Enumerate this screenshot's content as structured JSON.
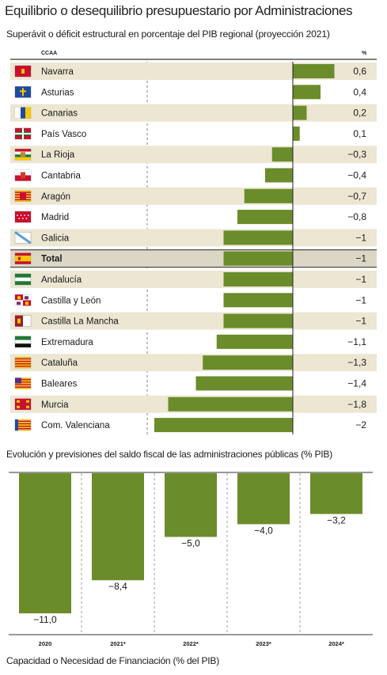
{
  "title": "Equilibrio o desequilibrio presupuestario por Administraciones",
  "colors": {
    "bar": "#6b8c2a",
    "row_band": "#ece6d2",
    "total_band": "#dcd7c5",
    "axis": "#555555"
  },
  "chart_data": [
    {
      "type": "bar",
      "orientation": "horizontal",
      "title": "Superávit o déficit estructural en porcentaje del PIB regional (proyección 2021)",
      "column_headers": {
        "category": "CCAA",
        "value": "%"
      },
      "categories": [
        "Navarra",
        "Asturias",
        "Canarias",
        "País Vasco",
        "La Rioja",
        "Cantabria",
        "Aragón",
        "Madrid",
        "Galicia",
        "Total",
        "Andalucía",
        "Castilla y León",
        "Castilla La Mancha",
        "Extremadura",
        "Cataluña",
        "Baleares",
        "Murcia",
        "Com. Valenciana"
      ],
      "values": [
        0.6,
        0.4,
        0.2,
        0.1,
        -0.3,
        -0.4,
        -0.7,
        -0.8,
        -1,
        -1,
        -1,
        -1,
        -1,
        -1.1,
        -1.3,
        -1.4,
        -1.8,
        -2
      ],
      "value_labels": [
        "0,6",
        "0,4",
        "0,2",
        "0,1",
        "−0,3",
        "−0,4",
        "−0,7",
        "−0,8",
        "−1",
        "−1",
        "−1",
        "−1",
        "−1",
        "−1,1",
        "−1,3",
        "−1,4",
        "−1,8",
        "−2"
      ],
      "highlight": "Total",
      "flag_icons": [
        "navarra-flag-icon",
        "asturias-flag-icon",
        "canarias-flag-icon",
        "pais-vasco-flag-icon",
        "la-rioja-flag-icon",
        "cantabria-flag-icon",
        "aragon-flag-icon",
        "madrid-flag-icon",
        "galicia-flag-icon",
        "spain-flag-icon",
        "andalucia-flag-icon",
        "castilla-y-leon-flag-icon",
        "castilla-la-mancha-flag-icon",
        "extremadura-flag-icon",
        "cataluna-flag-icon",
        "baleares-flag-icon",
        "murcia-flag-icon",
        "com-valenciana-flag-icon"
      ],
      "xlim": [
        -2,
        0.6
      ],
      "grid": false
    },
    {
      "type": "bar",
      "orientation": "vertical",
      "title": "Evolución y previsiones del saldo fiscal de las administraciones públicas (% PIB)",
      "categories": [
        "2020",
        "2021*",
        "2022*",
        "2023*",
        "2024*"
      ],
      "values": [
        -11.0,
        -8.4,
        -5.0,
        -4.0,
        -3.2
      ],
      "value_labels": [
        "−11,0",
        "−8,4",
        "−5,0",
        "−4,0",
        "−3,2"
      ],
      "ylim": [
        -11,
        0
      ],
      "grid": false
    }
  ],
  "footer_title": "Capacidad o Necesidad de Financiación (% del PIB)"
}
